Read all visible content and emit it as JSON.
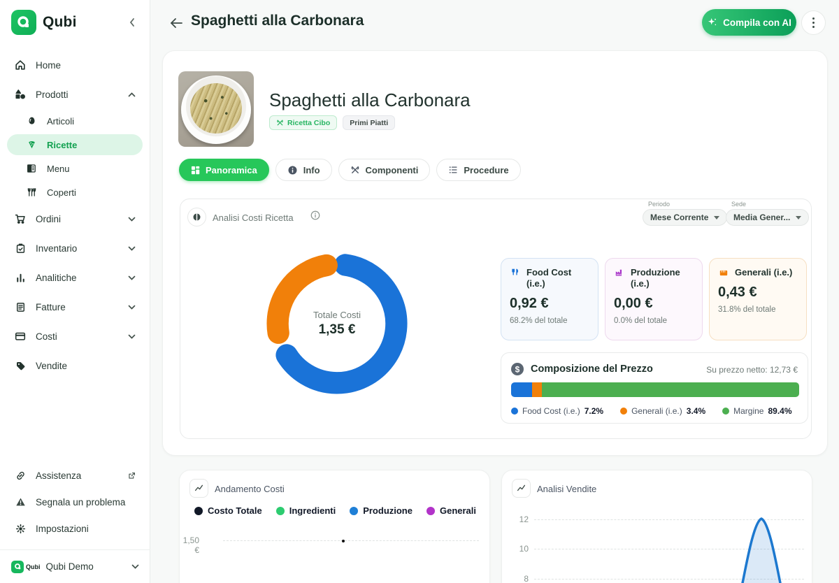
{
  "brand": {
    "name": "Qubi"
  },
  "sidebar": {
    "items": [
      {
        "label": "Home"
      },
      {
        "label": "Prodotti"
      },
      {
        "label": "Articoli"
      },
      {
        "label": "Ricette"
      },
      {
        "label": "Menu"
      },
      {
        "label": "Coperti"
      },
      {
        "label": "Ordini"
      },
      {
        "label": "Inventario"
      },
      {
        "label": "Analitiche"
      },
      {
        "label": "Fatture"
      },
      {
        "label": "Costi"
      },
      {
        "label": "Vendite"
      }
    ],
    "footer": [
      {
        "label": "Assistenza"
      },
      {
        "label": "Segnala un problema"
      },
      {
        "label": "Impostazioni"
      }
    ],
    "workspace": "Qubi Demo"
  },
  "header": {
    "title": "Spaghetti alla Carbonara",
    "ai_button": "Compila con AI"
  },
  "recipe": {
    "title": "Spaghetti alla Carbonara",
    "badge_type": "Ricetta Cibo",
    "badge_category": "Primi Piatti"
  },
  "tabs": [
    {
      "label": "Panoramica"
    },
    {
      "label": "Info"
    },
    {
      "label": "Componenti"
    },
    {
      "label": "Procedure"
    }
  ],
  "cost_analysis": {
    "title": "Analisi Costi Ricetta",
    "period_label": "Periodo",
    "period_value": "Mese Corrente",
    "site_label": "Sede",
    "site_value": "Media Gener...",
    "donut": {
      "center_label": "Totale Costi",
      "center_value": "1,35 €"
    },
    "stats": [
      {
        "title": "Food Cost (i.e.)",
        "value": "0,92 €",
        "note": "68.2% del totale"
      },
      {
        "title": "Produzione (i.e.)",
        "value": "0,00 €",
        "note": "0.0% del totale"
      },
      {
        "title": "Generali (i.e.)",
        "value": "0,43 €",
        "note": "31.8% del totale"
      }
    ],
    "composition": {
      "title": "Composizione del Prezzo",
      "net_price": "Su prezzo netto: 12,73 €",
      "legend": [
        {
          "label": "Food Cost (i.e.)",
          "pct": "7.2%"
        },
        {
          "label": "Generali (i.e.)",
          "pct": "3.4%"
        },
        {
          "label": "Margine",
          "pct": "89.4%"
        }
      ]
    }
  },
  "cost_trend": {
    "title": "Andamento Costi",
    "legend": [
      "Costo Totale",
      "Ingredienti",
      "Produzione",
      "Generali"
    ],
    "ytick": "1,50 €"
  },
  "sales": {
    "title": "Analisi Vendite",
    "yticks": [
      "12",
      "10",
      "8"
    ]
  },
  "colors": {
    "accent_green": "#27c75a",
    "donut_blue": "#1a73d8",
    "donut_orange": "#f1800a",
    "margin_green": "#4caf50",
    "trend_black": "#111827",
    "trend_green": "#2dcc70",
    "trend_blue": "#1f7fd6",
    "trend_purple": "#b233c9"
  },
  "chart_data": [
    {
      "type": "pie",
      "title": "Analisi Costi Ricetta",
      "labels": [
        "Food Cost (i.e.)",
        "Generali (i.e.)"
      ],
      "values": [
        68.2,
        31.8
      ],
      "center_total": "1,35 €"
    },
    {
      "type": "bar",
      "title": "Composizione del Prezzo",
      "categories": [
        "Food Cost (i.e.)",
        "Generali (i.e.)",
        "Margine"
      ],
      "values": [
        7.2,
        3.4,
        89.4
      ],
      "note": "Su prezzo netto: 12,73 €"
    },
    {
      "type": "line",
      "title": "Andamento Costi",
      "series": [
        {
          "name": "Costo Totale",
          "visible_point_value": 1.35
        }
      ],
      "yticks": [
        "1,50 €"
      ]
    },
    {
      "type": "line",
      "title": "Analisi Vendite",
      "yticks": [
        12,
        10,
        8
      ],
      "peak_value": 12
    }
  ]
}
